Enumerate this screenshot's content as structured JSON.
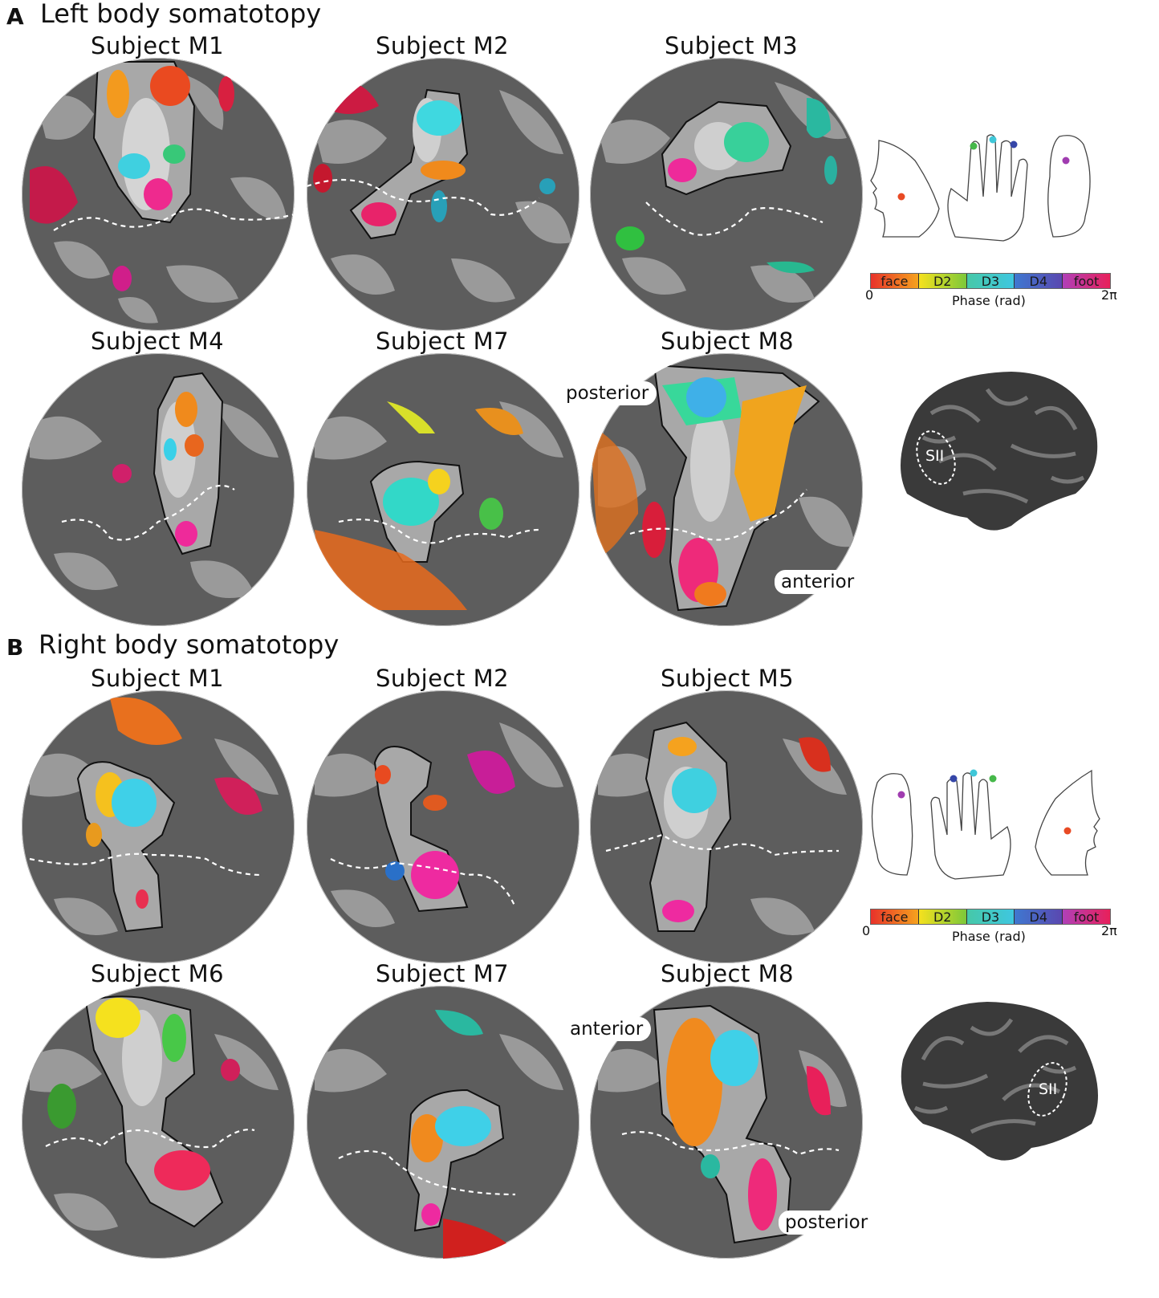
{
  "panelA": {
    "letter": "A",
    "title": "Left body somatotopy",
    "subjects": [
      "Subject  M1",
      "Subject  M2",
      "Subject  M3",
      "Subject  M4",
      "Subject  M7",
      "Subject  M8"
    ],
    "posterior_label": "posterior",
    "anterior_label": "anterior",
    "colorbar": {
      "segments": [
        "face",
        "D2",
        "D3",
        "D4",
        "foot"
      ],
      "min": "0",
      "max": "2π",
      "axis_label": "Phase (rad)",
      "colors": [
        "#e8322a",
        "#f5e11e",
        "#46b84a",
        "#3fc7e0",
        "#3546a8",
        "#b040b8",
        "#e8205a"
      ]
    },
    "brain_label": "SII"
  },
  "panelB": {
    "letter": "B",
    "title": "Right body somatotopy",
    "subjects": [
      "Subject  M1",
      "Subject  M2",
      "Subject  M5",
      "Subject  M6",
      "Subject  M7",
      "Subject  M8"
    ],
    "anterior_label": "anterior",
    "posterior_label": "posterior",
    "colorbar": {
      "segments": [
        "face",
        "D2",
        "D3",
        "D4",
        "foot"
      ],
      "min": "0",
      "max": "2π",
      "axis_label": "Phase (rad)"
    },
    "brain_label": "SII"
  }
}
